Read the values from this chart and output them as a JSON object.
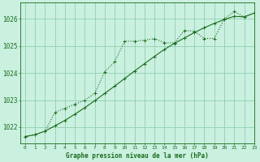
{
  "title": "Graphe pression niveau de la mer (hPa)",
  "background_color": "#caf0e0",
  "grid_color": "#90d0b0",
  "line_color": "#1a6b1a",
  "xlim": [
    -0.5,
    23
  ],
  "ylim": [
    1021.4,
    1026.6
  ],
  "yticks": [
    1022,
    1023,
    1024,
    1025,
    1026
  ],
  "xticks": [
    0,
    1,
    2,
    3,
    4,
    5,
    6,
    7,
    8,
    9,
    10,
    11,
    12,
    13,
    14,
    15,
    16,
    17,
    18,
    19,
    20,
    21,
    22,
    23
  ],
  "series1_x": [
    0,
    1,
    2,
    3,
    4,
    5,
    6,
    7,
    8,
    9,
    10,
    11,
    12,
    13,
    14,
    15,
    16,
    17,
    18,
    19,
    20,
    21,
    22,
    23
  ],
  "series1_y": [
    1021.65,
    1021.72,
    1021.85,
    1022.05,
    1022.25,
    1022.48,
    1022.72,
    1022.98,
    1023.25,
    1023.52,
    1023.8,
    1024.08,
    1024.35,
    1024.62,
    1024.88,
    1025.1,
    1025.3,
    1025.5,
    1025.68,
    1025.84,
    1025.98,
    1026.1,
    1026.08,
    1026.22
  ],
  "series2_x": [
    0,
    1,
    2,
    3,
    4,
    5,
    6,
    7,
    8,
    9,
    10,
    11,
    12,
    13,
    14,
    15,
    16,
    17,
    18,
    19,
    20,
    21,
    22,
    23
  ],
  "series2_y": [
    1021.65,
    1021.72,
    1021.85,
    1022.55,
    1022.7,
    1022.85,
    1023.0,
    1023.25,
    1024.05,
    1024.42,
    1025.18,
    1025.18,
    1025.22,
    1025.28,
    1025.12,
    1025.12,
    1025.58,
    1025.55,
    1025.28,
    1025.28,
    1026.0,
    1026.28,
    1026.08,
    1026.22
  ]
}
